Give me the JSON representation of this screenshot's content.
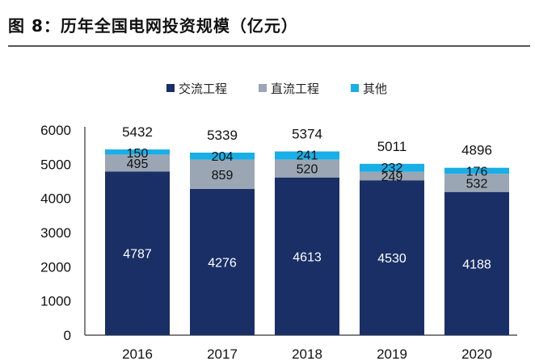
{
  "header": {
    "title": "图 8：历年全国电网投资规模（亿元）"
  },
  "chart_data": {
    "type": "bar",
    "stacked": true,
    "categories": [
      "2016",
      "2017",
      "2018",
      "2019",
      "2020"
    ],
    "series": [
      {
        "name": "交流工程",
        "values": [
          4787,
          4276,
          4613,
          4530,
          4188
        ],
        "color": "#1a2f66"
      },
      {
        "name": "直流工程",
        "values": [
          495,
          859,
          520,
          249,
          532
        ],
        "color": "#9aa6b3"
      },
      {
        "name": "其他",
        "values": [
          150,
          204,
          241,
          232,
          176
        ],
        "color": "#19aee6"
      }
    ],
    "totals": [
      5432,
      5339,
      5374,
      5011,
      4896
    ],
    "yticks": [
      0,
      1000,
      2000,
      3000,
      4000,
      5000,
      6000
    ],
    "ylim": [
      0,
      6000
    ],
    "legend": "top",
    "grid": false
  }
}
